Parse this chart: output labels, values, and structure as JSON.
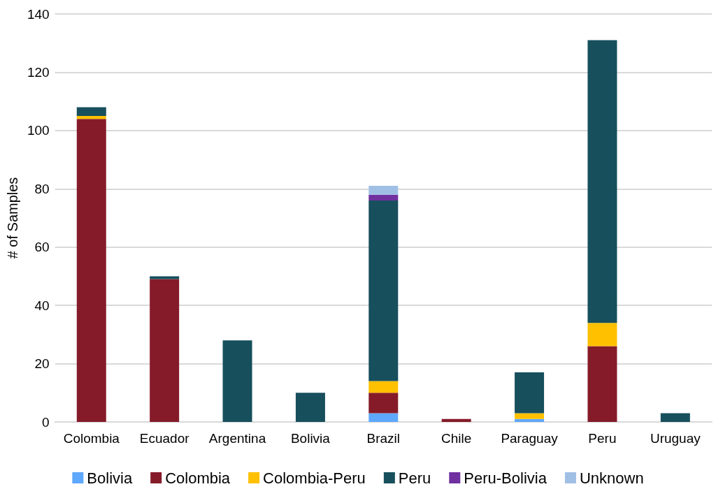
{
  "chart_data": {
    "type": "bar",
    "ylabel": "# of Samples",
    "stacked": true,
    "grid": "y",
    "legend": "bottom",
    "categories": [
      "Colombia",
      "Ecuador",
      "Argentina",
      "Bolivia",
      "Brazil",
      "Chile",
      "Paraguay",
      "Peru",
      "Uruguay"
    ],
    "ylim": [
      0,
      140
    ],
    "yticks": [
      0,
      20,
      40,
      60,
      80,
      100,
      120,
      140
    ],
    "series": [
      {
        "name": "Bolivia",
        "color": "#5ea8fd",
        "values": [
          0,
          0,
          0,
          0,
          3,
          0,
          1,
          0,
          0
        ]
      },
      {
        "name": "Colombia",
        "color": "#851b29",
        "values": [
          104,
          49,
          0,
          0,
          7,
          1,
          0,
          26,
          0
        ]
      },
      {
        "name": "Colombia-Peru",
        "color": "#ffc000",
        "values": [
          1,
          0,
          0,
          0,
          4,
          0,
          2,
          8,
          0
        ]
      },
      {
        "name": "Peru",
        "color": "#174f5c",
        "values": [
          3,
          1,
          28,
          10,
          62,
          0,
          14,
          97,
          3
        ]
      },
      {
        "name": "Peru-Bolivia",
        "color": "#7030a0",
        "values": [
          0,
          0,
          0,
          0,
          2,
          0,
          0,
          0,
          0
        ]
      },
      {
        "name": "Unknown",
        "color": "#a0bfe5",
        "values": [
          0,
          0,
          0,
          0,
          3,
          0,
          0,
          0,
          0
        ]
      }
    ]
  }
}
